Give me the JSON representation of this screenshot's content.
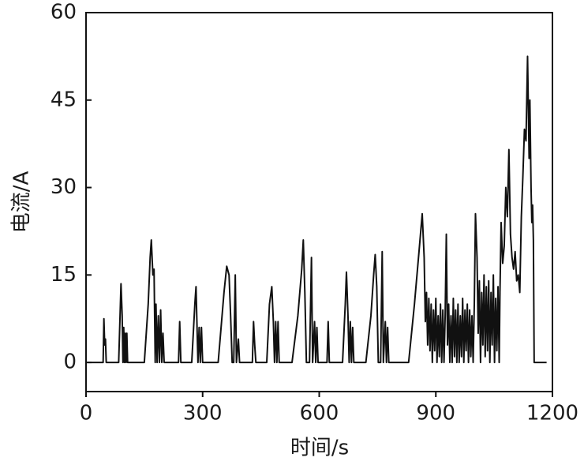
{
  "chart_data": {
    "type": "line",
    "xlabel": "时间/s",
    "ylabel": "电流/A",
    "xlim": [
      0,
      1200
    ],
    "xticks": [
      0,
      300,
      600,
      900,
      1200
    ],
    "ylim": [
      -5,
      60
    ],
    "yticks": [
      0,
      15,
      30,
      45,
      60
    ],
    "x": [
      0,
      44,
      46,
      48,
      50,
      52,
      84,
      90,
      93,
      95,
      97,
      99,
      101,
      103,
      105,
      107,
      150,
      160,
      165,
      168,
      172,
      175,
      178,
      180,
      183,
      186,
      189,
      192,
      195,
      198,
      201,
      238,
      241,
      244,
      272,
      280,
      283,
      286,
      288,
      291,
      294,
      297,
      300,
      340,
      355,
      362,
      368,
      372,
      376,
      380,
      384,
      387,
      392,
      395,
      428,
      431,
      434,
      437,
      465,
      472,
      478,
      482,
      485,
      488,
      491,
      494,
      497,
      530,
      545,
      555,
      559,
      563,
      567,
      575,
      580,
      583,
      588,
      591,
      594,
      597,
      620,
      623,
      626,
      660,
      667,
      670,
      674,
      677,
      680,
      683,
      686,
      689,
      720,
      733,
      740,
      744,
      748,
      752,
      758,
      762,
      765,
      770,
      773,
      776,
      779,
      830,
      845,
      858,
      865,
      870,
      873,
      876,
      879,
      882,
      885,
      888,
      891,
      894,
      897,
      900,
      903,
      906,
      909,
      912,
      915,
      918,
      921,
      924,
      927,
      930,
      933,
      936,
      939,
      942,
      945,
      948,
      951,
      954,
      957,
      960,
      963,
      966,
      969,
      972,
      975,
      978,
      981,
      984,
      987,
      990,
      993,
      996,
      999,
      1002,
      1006,
      1009,
      1012,
      1015,
      1018,
      1021,
      1024,
      1027,
      1030,
      1033,
      1036,
      1039,
      1042,
      1045,
      1048,
      1051,
      1054,
      1057,
      1060,
      1063,
      1065,
      1068,
      1072,
      1076,
      1080,
      1084,
      1088,
      1092,
      1096,
      1100,
      1104,
      1108,
      1112,
      1116,
      1120,
      1124,
      1128,
      1132,
      1136,
      1140,
      1142,
      1145,
      1147,
      1149,
      1151,
      1153,
      1185
    ],
    "series": [
      {
        "color": "#111111",
        "values": [
          0,
          0,
          7.5,
          3,
          4,
          0,
          0,
          13.5,
          8,
          0,
          6,
          0,
          5,
          0,
          5,
          0,
          0,
          10,
          18,
          21,
          15,
          16,
          0,
          10,
          0,
          8,
          0,
          9,
          0,
          5,
          0,
          0,
          7,
          0,
          0,
          10,
          13,
          5,
          0,
          6,
          0,
          6,
          0,
          0,
          12,
          16.5,
          15,
          8,
          0,
          0,
          15,
          0,
          4,
          0,
          0,
          7,
          3,
          0,
          0,
          10,
          13,
          7,
          0,
          7,
          0,
          7,
          0,
          0,
          8,
          16,
          21,
          12,
          0,
          0,
          18,
          0,
          7,
          0,
          6,
          0,
          0,
          7,
          0,
          0,
          10,
          15.5,
          8,
          0,
          7,
          0,
          6,
          0,
          0,
          8,
          15,
          18.5,
          13,
          0,
          0,
          19,
          0,
          7,
          0,
          6,
          0,
          0,
          10,
          20,
          25.5,
          18,
          7,
          12,
          3,
          11,
          2,
          10,
          0,
          9,
          2,
          11,
          0,
          8,
          1,
          10,
          0,
          9,
          0,
          8,
          22,
          3,
          10,
          0,
          8,
          0,
          11,
          1,
          9,
          0,
          10,
          0,
          8,
          1,
          11,
          0,
          9,
          2,
          10,
          0,
          9,
          1,
          8,
          0,
          10,
          25.5,
          18,
          5,
          14,
          0,
          12,
          3,
          15,
          1,
          13,
          2,
          14,
          0,
          12,
          3,
          15,
          0,
          11,
          2,
          13,
          0,
          12,
          24,
          17,
          20,
          30,
          25,
          36.5,
          22,
          18,
          16,
          19,
          14,
          15,
          12,
          25,
          32,
          40,
          38,
          52.5,
          35,
          45,
          30,
          24,
          27,
          21,
          0,
          0
        ]
      }
    ]
  }
}
